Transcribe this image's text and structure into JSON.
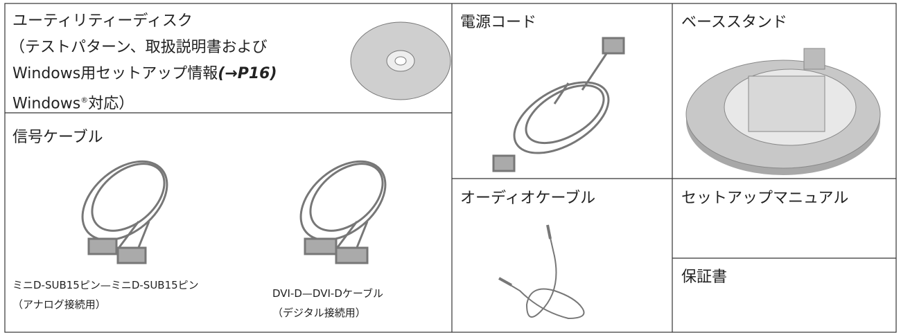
{
  "disk": {
    "title": "ユーティリティーディスク",
    "line2": "（テストパターン、取扱説明書および",
    "line3": "Windows用セットアップ情報",
    "ref": "(→P16)",
    "line4a": "Windows",
    "mark": "®",
    "line4b": "対応）"
  },
  "signal_cable": {
    "title": "信号ケーブル",
    "vga": [
      "ミニD-SUB15ピン—ミニD-SUB15ピン",
      "（アナログ接続用）"
    ],
    "dvi": [
      "DVI-D—DVI-Dケーブル",
      "（デジタル接続用）"
    ]
  },
  "power_cord": "電源コード",
  "base_stand": "ベーススタンド",
  "audio_cable": "オーディオケーブル",
  "setup_manual": "セットアップマニュアル",
  "warranty": "保証書"
}
